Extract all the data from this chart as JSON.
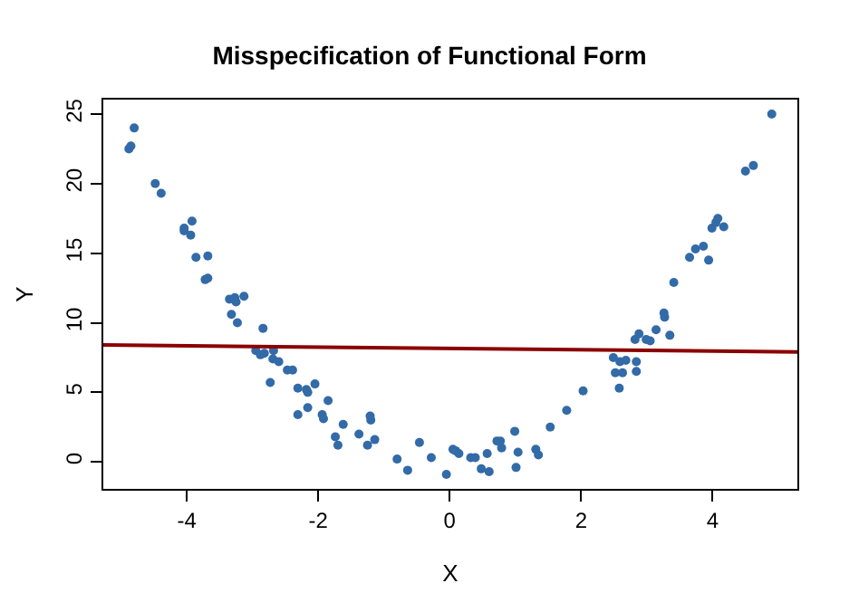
{
  "chart_data": {
    "type": "scatter",
    "title": "Misspecification of Functional Form",
    "xlabel": "X",
    "ylabel": "Y",
    "xlim": [
      -5.27,
      5.29
    ],
    "ylim": [
      -1.94,
      26.04
    ],
    "xticks": [
      -4,
      -2,
      0,
      2,
      4
    ],
    "yticks": [
      0,
      5,
      10,
      15,
      20,
      25
    ],
    "legend": false,
    "marker": "circle",
    "series": [
      {
        "color": "#336aa8",
        "x": [
          -4.8,
          -4.88,
          -4.85,
          -4.48,
          -4.39,
          -4.04,
          -4.04,
          -3.92,
          -3.94,
          -3.86,
          -3.68,
          -3.72,
          -3.68,
          -3.35,
          -3.27,
          -3.25,
          -3.13,
          -3.32,
          -3.23,
          -2.84,
          -2.95,
          -2.88,
          -2.82,
          -2.68,
          -2.69,
          -2.6,
          -2.47,
          -2.39,
          -2.73,
          -2.31,
          -2.18,
          -2.16,
          -2.05,
          -1.85,
          -2.31,
          -2.16,
          -1.94,
          -1.92,
          -1.62,
          -1.74,
          -1.7,
          -1.38,
          -1.25,
          -1.2,
          -1.21,
          -1.14,
          -0.8,
          -0.64,
          -0.46,
          -0.28,
          -0.05,
          0.05,
          0.14,
          0.09,
          0.32,
          0.39,
          0.48,
          0.6,
          0.57,
          0.72,
          0.79,
          0.77,
          1.04,
          1.01,
          0.99,
          1.31,
          1.35,
          1.53,
          1.78,
          2.03,
          2.49,
          2.59,
          2.68,
          2.84,
          2.52,
          2.63,
          2.84,
          2.58,
          2.82,
          2.88,
          2.99,
          3.05,
          3.14,
          3.35,
          3.26,
          3.27,
          3.41,
          3.65,
          3.74,
          3.86,
          3.94,
          3.99,
          4.05,
          4.08,
          4.17,
          4.5,
          4.62,
          4.9
        ],
        "values": [
          24.0,
          22.5,
          22.7,
          20.0,
          19.3,
          16.8,
          16.6,
          17.3,
          16.3,
          14.7,
          14.8,
          13.1,
          13.2,
          11.7,
          11.8,
          11.5,
          11.9,
          10.6,
          10.0,
          9.6,
          8.0,
          7.7,
          7.8,
          8.0,
          7.4,
          7.2,
          6.6,
          6.6,
          5.7,
          5.3,
          5.2,
          5.0,
          5.6,
          4.4,
          3.4,
          3.9,
          3.4,
          3.1,
          2.7,
          1.8,
          1.2,
          2.0,
          1.2,
          3.0,
          3.3,
          1.6,
          0.2,
          -0.6,
          1.4,
          0.3,
          -0.9,
          0.9,
          0.6,
          0.8,
          0.3,
          0.3,
          -0.5,
          -0.7,
          0.6,
          1.5,
          1.0,
          1.5,
          0.7,
          -0.4,
          2.2,
          0.9,
          0.5,
          2.5,
          3.7,
          5.1,
          7.5,
          7.2,
          7.3,
          7.2,
          6.4,
          6.4,
          6.5,
          5.3,
          8.8,
          9.2,
          8.8,
          8.7,
          9.5,
          9.1,
          10.7,
          10.4,
          12.9,
          14.7,
          15.3,
          15.5,
          14.5,
          16.8,
          17.2,
          17.5,
          16.9,
          20.9,
          21.3,
          25.0
        ]
      },
      {
        "type": "line",
        "color": "#8b0000",
        "marker": "none",
        "line_style": "solid",
        "x": [
          -5.27,
          5.29
        ],
        "values": [
          8.4,
          7.9
        ]
      }
    ]
  }
}
